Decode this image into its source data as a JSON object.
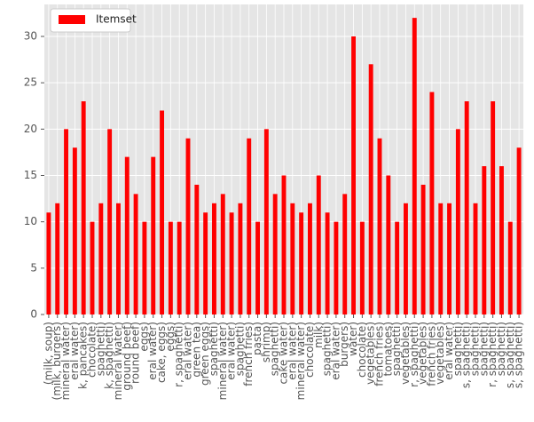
{
  "chart_data": {
    "type": "bar",
    "legend": "Itemset",
    "legend_position": "upper left",
    "color": "#ff0000",
    "grid": true,
    "categories": [
      "(milk, soup)",
      "(milk, burgers)",
      "mineral water)",
      "eral water)",
      "k, pancakes)",
      "chocolate)",
      "spaghetti)",
      "k, spaghetti)",
      "mineral water)",
      "ground beef)",
      "round beef)",
      "eggs)",
      "eral water)",
      "cake, eggs)",
      "eggs)",
      "r, spaghetti)",
      "eral water)",
      "green tea)",
      "green eggs)",
      "spaghetti)",
      "mineral water)",
      "eral water)",
      "spaghetti)",
      "french fries)",
      "pasta)",
      "shrimp)",
      "spaghetti)",
      "cake water)",
      "eral water)",
      "mineral water)",
      "chocolate)",
      "milk)",
      "spaghetti)",
      "eral water)",
      "burgers)",
      "water)",
      "chocolate)",
      "vegetables)",
      "french fries)",
      "tomatoes)",
      "spaghetti)",
      "vegetables)",
      "r, spaghetti)",
      "vegetables)",
      "french fries)",
      "vegetables)",
      "eral water)",
      "spaghetti)",
      "s, spaghetti)",
      "spaghetti)",
      "spaghetti)",
      "r, spaghetti)",
      "spaghetti)",
      "s, spaghetti)",
      "s, spaghetti)"
    ],
    "values": [
      11,
      12,
      20,
      18,
      23,
      10,
      12,
      20,
      12,
      17,
      13,
      10,
      17,
      22,
      10,
      10,
      19,
      14,
      11,
      12,
      13,
      11,
      12,
      19,
      10,
      20,
      13,
      15,
      12,
      11,
      12,
      15,
      11,
      10,
      13,
      30,
      10,
      27,
      19,
      15,
      10,
      12,
      32,
      14,
      24,
      12,
      12,
      20,
      23,
      12,
      16,
      23,
      16,
      10,
      18
    ],
    "ylim": [
      0,
      33.45
    ],
    "yticks": [
      0,
      5,
      10,
      15,
      20,
      25,
      30
    ]
  }
}
